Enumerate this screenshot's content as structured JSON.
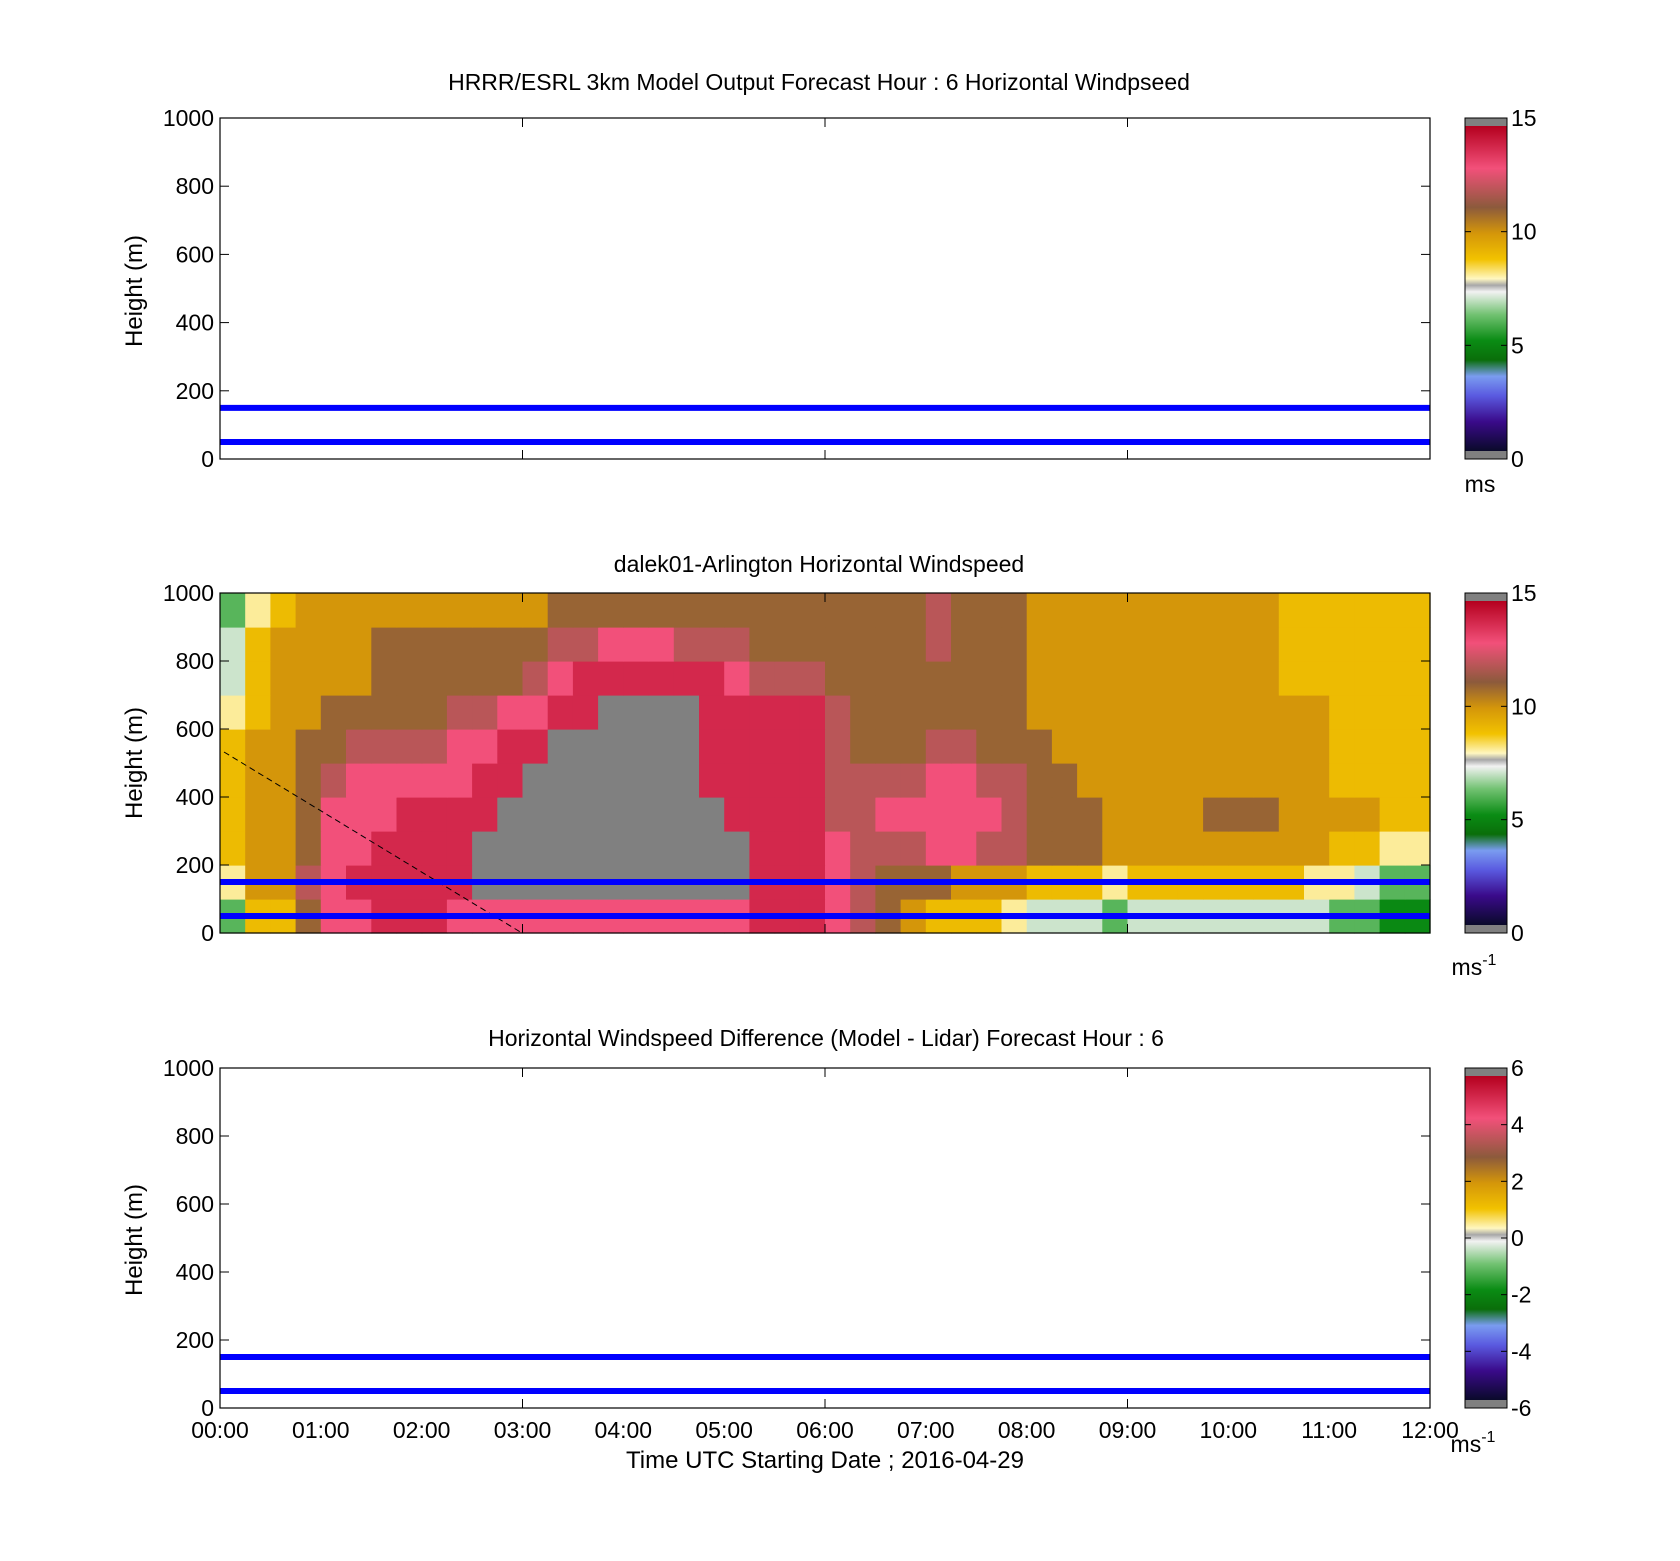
{
  "chart_data": [
    {
      "type": "heatmap",
      "title": "HRRR/ESRL 3km Model Output   Forecast Hour : 6 Horizontal Windpseed",
      "ylabel": "Height (m)",
      "xlabel": "",
      "x_ticks": [
        "00:00",
        "01:00",
        "02:00",
        "03:00",
        "04:00",
        "05:00",
        "06:00",
        "07:00",
        "08:00",
        "09:00",
        "10:00",
        "11:00",
        "12:00"
      ],
      "show_x_ticklabels": false,
      "xlim_hours": [
        0,
        12
      ],
      "ylim": [
        0,
        1000
      ],
      "y_ticks": [
        0,
        200,
        400,
        600,
        800,
        1000
      ],
      "reference_lines_m": [
        50,
        150
      ],
      "reference_line_color": "#0000ff",
      "heatmap": null,
      "colorbar": {
        "scheme": "speed",
        "range": [
          0,
          15
        ],
        "ticks": [
          0,
          5,
          10,
          15
        ],
        "unit": "ms",
        "unit_sup": ""
      }
    },
    {
      "type": "heatmap",
      "title": "dalek01-Arlington  Horizontal Windspeed",
      "ylabel": "Height (m)",
      "xlabel": "",
      "x_ticks": [
        "00:00",
        "01:00",
        "02:00",
        "03:00",
        "04:00",
        "05:00",
        "06:00",
        "07:00",
        "08:00",
        "09:00",
        "10:00",
        "11:00",
        "12:00"
      ],
      "show_x_ticklabels": false,
      "xlim_hours": [
        0,
        12
      ],
      "ylim": [
        0,
        1000
      ],
      "y_ticks": [
        0,
        200,
        400,
        600,
        800,
        1000
      ],
      "reference_lines_m": [
        50,
        150
      ],
      "reference_line_color": "#0000ff",
      "heatmap": {
        "x_hours": [
          0.125,
          0.375,
          0.625,
          0.875,
          1.125,
          1.375,
          1.625,
          1.875,
          2.125,
          2.375,
          2.625,
          2.875,
          3.125,
          3.375,
          3.625,
          3.875,
          4.125,
          4.375,
          4.625,
          4.875,
          5.125,
          5.375,
          5.625,
          5.875,
          6.125,
          6.375,
          6.625,
          6.875,
          7.125,
          7.375,
          7.625,
          7.875,
          8.125,
          8.375,
          8.625,
          8.875,
          9.125,
          9.375,
          9.625,
          9.875,
          10.125,
          10.375,
          10.625,
          10.875,
          11.125,
          11.375,
          11.625,
          11.875
        ],
        "y_m": [
          50,
          150,
          250,
          350,
          450,
          550,
          650,
          750,
          850,
          950
        ],
        "value_unit": "m/s",
        "missing_value_color": "#808080",
        "values_ms": [
          [
            6,
            9,
            9,
            11,
            13,
            13,
            14,
            14,
            14,
            13,
            13,
            13,
            13,
            13,
            13,
            13,
            13,
            13,
            13,
            13,
            13,
            14,
            14,
            14,
            13,
            12,
            11,
            10,
            9,
            9,
            9,
            8,
            7,
            7,
            7,
            6,
            7,
            7,
            7,
            7,
            7,
            7,
            7,
            7,
            6,
            6,
            5,
            5
          ],
          [
            8,
            10,
            10,
            12,
            13,
            14,
            14,
            14,
            14,
            14,
            null,
            null,
            null,
            null,
            null,
            null,
            null,
            null,
            null,
            null,
            null,
            14,
            14,
            14,
            13,
            12,
            11,
            11,
            11,
            10,
            10,
            10,
            9,
            9,
            9,
            8,
            9,
            9,
            9,
            9,
            9,
            9,
            9,
            8,
            8,
            7,
            6,
            6
          ],
          [
            9,
            10,
            10,
            11,
            13,
            13,
            14,
            14,
            14,
            14,
            null,
            null,
            null,
            null,
            null,
            null,
            null,
            null,
            null,
            null,
            null,
            14,
            14,
            14,
            13,
            12,
            12,
            12,
            13,
            13,
            12,
            12,
            11,
            11,
            11,
            10,
            10,
            10,
            10,
            10,
            10,
            10,
            10,
            10,
            9,
            9,
            8,
            8
          ],
          [
            9,
            10,
            10,
            11,
            13,
            13,
            13,
            14,
            14,
            14,
            14,
            null,
            null,
            null,
            null,
            null,
            null,
            null,
            null,
            null,
            14,
            14,
            14,
            14,
            12,
            12,
            13,
            13,
            13,
            13,
            13,
            12,
            11,
            11,
            11,
            10,
            10,
            10,
            10,
            11,
            11,
            11,
            10,
            10,
            10,
            10,
            9,
            9
          ],
          [
            9,
            10,
            10,
            11,
            12,
            13,
            13,
            13,
            13,
            13,
            14,
            14,
            null,
            null,
            null,
            null,
            null,
            null,
            null,
            14,
            14,
            14,
            14,
            14,
            12,
            12,
            12,
            12,
            13,
            13,
            12,
            12,
            11,
            11,
            10,
            10,
            10,
            10,
            10,
            10,
            10,
            10,
            10,
            10,
            9,
            9,
            9,
            9
          ],
          [
            9,
            10,
            10,
            11,
            11,
            12,
            12,
            12,
            12,
            13,
            13,
            14,
            14,
            null,
            null,
            null,
            null,
            null,
            null,
            14,
            14,
            14,
            14,
            14,
            12,
            11,
            11,
            11,
            12,
            12,
            11,
            11,
            11,
            10,
            10,
            10,
            10,
            10,
            10,
            10,
            10,
            10,
            10,
            10,
            9,
            9,
            9,
            9
          ],
          [
            8,
            9,
            10,
            10,
            11,
            11,
            11,
            11,
            11,
            12,
            12,
            13,
            13,
            14,
            14,
            null,
            null,
            null,
            null,
            14,
            14,
            14,
            14,
            14,
            12,
            11,
            11,
            11,
            11,
            11,
            11,
            11,
            10,
            10,
            10,
            10,
            10,
            10,
            10,
            10,
            10,
            10,
            10,
            10,
            9,
            9,
            9,
            9
          ],
          [
            7,
            9,
            10,
            10,
            10,
            10,
            11,
            11,
            11,
            11,
            11,
            11,
            12,
            13,
            14,
            14,
            14,
            14,
            14,
            14,
            13,
            12,
            12,
            12,
            11,
            11,
            11,
            11,
            11,
            11,
            11,
            11,
            10,
            10,
            10,
            10,
            10,
            10,
            10,
            10,
            10,
            10,
            9,
            9,
            9,
            9,
            9,
            9
          ],
          [
            7,
            9,
            10,
            10,
            10,
            10,
            11,
            11,
            11,
            11,
            11,
            11,
            11,
            12,
            12,
            13,
            13,
            13,
            12,
            12,
            12,
            11,
            11,
            11,
            11,
            11,
            11,
            11,
            12,
            11,
            11,
            11,
            10,
            10,
            10,
            10,
            10,
            10,
            10,
            10,
            10,
            10,
            9,
            9,
            9,
            9,
            9,
            9
          ],
          [
            6,
            8,
            9,
            10,
            10,
            10,
            10,
            10,
            10,
            10,
            10,
            10,
            10,
            11,
            11,
            11,
            11,
            11,
            11,
            11,
            11,
            11,
            11,
            11,
            11,
            11,
            11,
            11,
            12,
            11,
            11,
            11,
            10,
            10,
            10,
            10,
            10,
            10,
            10,
            10,
            10,
            10,
            9,
            9,
            9,
            9,
            9,
            9
          ]
        ]
      },
      "colorbar": {
        "scheme": "speed",
        "range": [
          0,
          15
        ],
        "ticks": [
          0,
          5,
          10,
          15
        ],
        "unit": "ms",
        "unit_sup": "-1"
      }
    },
    {
      "type": "heatmap",
      "title": "Horizontal Windspeed Difference (Model - Lidar) Forecast Hour : 6",
      "ylabel": "Height (m)",
      "xlabel": "Time UTC  Starting Date ; 2016-04-29",
      "x_ticks": [
        "00:00",
        "01:00",
        "02:00",
        "03:00",
        "04:00",
        "05:00",
        "06:00",
        "07:00",
        "08:00",
        "09:00",
        "10:00",
        "11:00",
        "12:00"
      ],
      "show_x_ticklabels": true,
      "xlim_hours": [
        0,
        12
      ],
      "ylim": [
        0,
        1000
      ],
      "y_ticks": [
        0,
        200,
        400,
        600,
        800,
        1000
      ],
      "reference_lines_m": [
        50,
        150
      ],
      "reference_line_color": "#0000ff",
      "heatmap": null,
      "colorbar": {
        "scheme": "diff",
        "range": [
          -6,
          6
        ],
        "ticks": [
          -6,
          -4,
          -2,
          0,
          2,
          4,
          6
        ],
        "unit": "ms",
        "unit_sup": "-1"
      }
    }
  ]
}
